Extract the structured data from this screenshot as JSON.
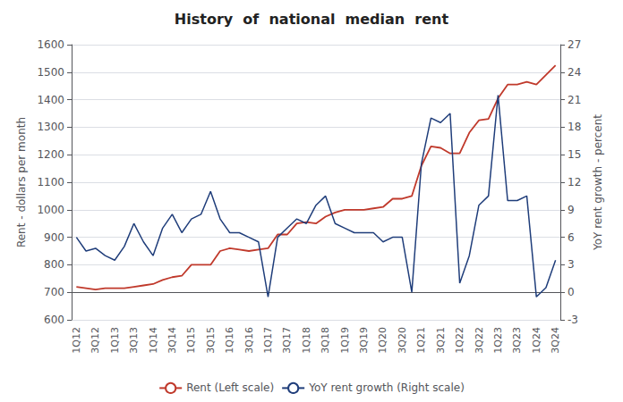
{
  "chart_data": {
    "type": "line",
    "title": "History  of  national  median  rent",
    "ylabel": "Rent - dollars per month",
    "y2label": "YoY rent growth - percent",
    "categories": [
      "1Q12",
      null,
      "3Q12",
      null,
      "1Q13",
      null,
      "3Q13",
      null,
      "1Q14",
      null,
      "3Q14",
      null,
      "1Q15",
      null,
      "3Q15",
      null,
      "1Q16",
      null,
      "3Q16",
      null,
      "1Q17",
      null,
      "3Q17",
      null,
      "1Q18",
      null,
      "3Q18",
      null,
      "1Q19",
      null,
      "3Q19",
      null,
      "1Q20",
      null,
      "3Q20",
      null,
      "1Q21",
      null,
      "3Q21",
      null,
      "1Q22",
      null,
      "3Q22",
      null,
      "1Q23",
      null,
      "3Q23",
      null,
      "1Q24",
      null,
      "3Q24"
    ],
    "series": [
      {
        "name": "Rent (Left scale)",
        "color": "#c0392b",
        "values": [
          720,
          715,
          710,
          715,
          715,
          715,
          720,
          725,
          730,
          745,
          755,
          760,
          800,
          800,
          800,
          850,
          860,
          855,
          850,
          855,
          860,
          910,
          910,
          950,
          955,
          950,
          975,
          990,
          1000,
          1000,
          1000,
          1005,
          1010,
          1040,
          1040,
          1050,
          1160,
          1230,
          1225,
          1205,
          1205,
          1280,
          1325,
          1330,
          1405,
          1455,
          1455,
          1465,
          1455,
          1490,
          1525
        ]
      },
      {
        "name": "YoY rent growth (Right scale)",
        "color": "#1f3d7a",
        "axis": "y2",
        "values": [
          6.0,
          4.5,
          4.8,
          4.0,
          3.5,
          5.0,
          7.5,
          5.5,
          4.0,
          7.0,
          8.5,
          6.5,
          8.0,
          8.5,
          11.0,
          8.0,
          6.5,
          6.5,
          6.0,
          5.5,
          -0.5,
          6.0,
          7.0,
          8.0,
          7.5,
          9.5,
          10.5,
          7.5,
          7.0,
          6.5,
          6.5,
          6.5,
          5.5,
          6.0,
          6.0,
          0.0,
          14.0,
          19.0,
          18.5,
          19.5,
          1.0,
          4.0,
          9.5,
          10.5,
          21.5,
          10.0,
          10.0,
          10.5,
          -0.5,
          0.5,
          3.5
        ]
      }
    ],
    "ylim": [
      600,
      1600
    ],
    "yticks": [
      600,
      700,
      800,
      900,
      1000,
      1100,
      1200,
      1300,
      1400,
      1500,
      1600
    ],
    "y2lim": [
      -3,
      27
    ],
    "y2ticks": [
      -3,
      0,
      3,
      6,
      9,
      12,
      15,
      18,
      21,
      24,
      27
    ],
    "grid": true,
    "legend": "bottom"
  }
}
